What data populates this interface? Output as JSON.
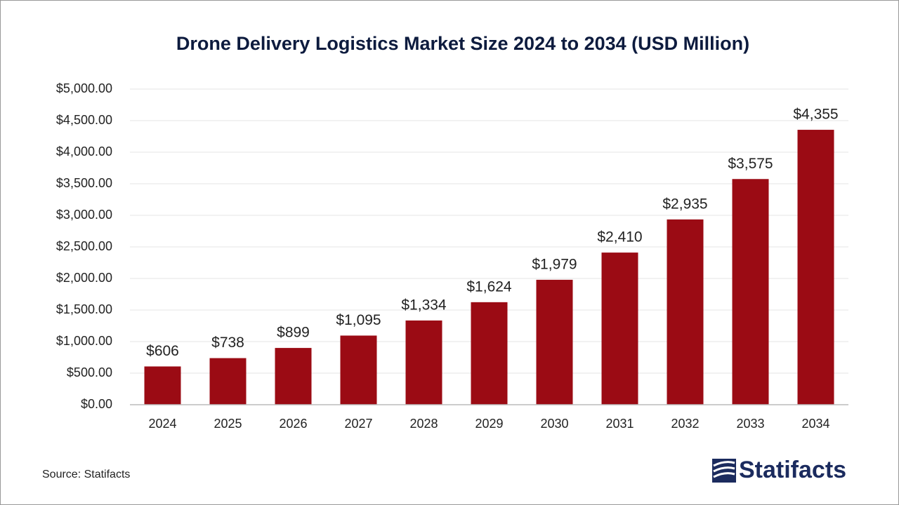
{
  "chart_data": {
    "type": "bar",
    "title": "Drone Delivery Logistics Market Size 2024 to 2034 (USD Million)",
    "categories": [
      "2024",
      "2025",
      "2026",
      "2027",
      "2028",
      "2029",
      "2030",
      "2031",
      "2032",
      "2033",
      "2034"
    ],
    "values": [
      606,
      738,
      899,
      1095,
      1334,
      1624,
      1979,
      2410,
      2935,
      3575,
      4355
    ],
    "value_labels": [
      "$606",
      "$738",
      "$899",
      "$1,095",
      "$1,334",
      "$1,624",
      "$1,979",
      "$2,410",
      "$2,935",
      "$3,575",
      "$4,355"
    ],
    "color": "#9b0b14",
    "ylim": [
      0,
      5000
    ],
    "yticks": [
      {
        "value": 0,
        "label": "$0.00"
      },
      {
        "value": 500,
        "label": "$500.00"
      },
      {
        "value": 1000,
        "label": "$1,000.00"
      },
      {
        "value": 1500,
        "label": "$1,500.00"
      },
      {
        "value": 2000,
        "label": "$2,000.00"
      },
      {
        "value": 2500,
        "label": "$2,500.00"
      },
      {
        "value": 3000,
        "label": "$3,000.00"
      },
      {
        "value": 3500,
        "label": "$3,500.00"
      },
      {
        "value": 4000,
        "label": "$4,000.00"
      },
      {
        "value": 4500,
        "label": "$4,500.00"
      },
      {
        "value": 5000,
        "label": "$5,000.00"
      }
    ],
    "grid": true,
    "source": "Source: Statifacts",
    "brand": "Statifacts"
  }
}
